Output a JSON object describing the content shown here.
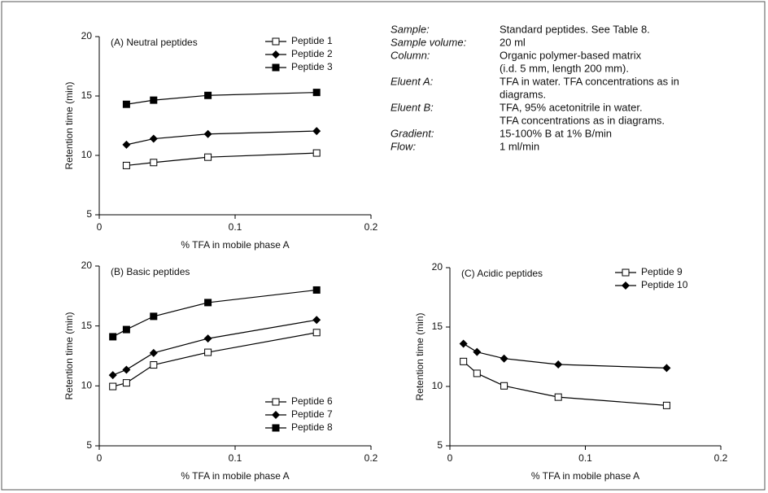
{
  "chart_data": [
    {
      "type": "line",
      "title": "(A) Neutral peptides",
      "xlabel": "% TFA in mobile phase A",
      "ylabel": "Retention time (min)",
      "x": [
        0.02,
        0.04,
        0.08,
        0.16
      ],
      "xlim": [
        0,
        0.2
      ],
      "xticks": [
        0,
        0.1,
        0.2
      ],
      "ylim": [
        5,
        20
      ],
      "yticks": [
        5,
        10,
        15,
        20
      ],
      "legend": "upper right",
      "series": [
        {
          "name": "Peptide 1",
          "color": "#000000",
          "marker": "open-square",
          "values": [
            9.15,
            9.4,
            9.85,
            10.2
          ]
        },
        {
          "name": "Peptide 2",
          "color": "#000000",
          "marker": "diamond",
          "values": [
            10.9,
            11.4,
            11.8,
            12.05
          ]
        },
        {
          "name": "Peptide 3",
          "color": "#000000",
          "marker": "square",
          "values": [
            14.3,
            14.65,
            15.05,
            15.3
          ]
        }
      ]
    },
    {
      "type": "line",
      "title": "(B) Basic peptides",
      "xlabel": "% TFA in mobile phase A",
      "ylabel": "Retention time (min)",
      "x": [
        0.01,
        0.02,
        0.04,
        0.08,
        0.16
      ],
      "xlim": [
        0,
        0.2
      ],
      "xticks": [
        0,
        0.1,
        0.2
      ],
      "ylim": [
        5,
        20
      ],
      "yticks": [
        5,
        10,
        15,
        20
      ],
      "legend": "lower right",
      "series": [
        {
          "name": "Peptide 6",
          "color": "#000000",
          "marker": "open-square",
          "values": [
            9.95,
            10.25,
            11.75,
            12.8,
            14.45
          ]
        },
        {
          "name": "Peptide 7",
          "color": "#000000",
          "marker": "diamond",
          "values": [
            10.9,
            11.35,
            12.75,
            13.95,
            15.5
          ]
        },
        {
          "name": "Peptide 8",
          "color": "#000000",
          "marker": "square",
          "values": [
            14.1,
            14.7,
            15.8,
            16.95,
            18.0
          ]
        }
      ]
    },
    {
      "type": "line",
      "title": "(C) Acidic peptides",
      "xlabel": "% TFA in mobile phase A",
      "ylabel": "Retention time (min)",
      "x": [
        0.01,
        0.02,
        0.04,
        0.08,
        0.16
      ],
      "xlim": [
        0,
        0.2
      ],
      "xticks": [
        0,
        0.1,
        0.2
      ],
      "ylim": [
        5,
        20
      ],
      "yticks": [
        5,
        10,
        15,
        20
      ],
      "legend": "upper right",
      "series": [
        {
          "name": "Peptide 9",
          "color": "#000000",
          "marker": "open-square",
          "values": [
            12.1,
            11.1,
            10.05,
            9.1,
            8.4
          ]
        },
        {
          "name": "Peptide 10",
          "color": "#000000",
          "marker": "diamond",
          "values": [
            13.6,
            12.9,
            12.35,
            11.85,
            11.55
          ]
        }
      ]
    }
  ],
  "conditions": [
    {
      "label": "Sample:",
      "lines": [
        "Standard peptides. See Table 8."
      ]
    },
    {
      "label": "Sample volume:",
      "lines": [
        "20 ml"
      ]
    },
    {
      "label": "Column:",
      "lines": [
        "Organic polymer-based matrix",
        "(i.d. 5 mm, length 200 mm)."
      ]
    },
    {
      "label": "Eluent A:",
      "lines": [
        "TFA in water. TFA concentrations as in",
        "diagrams."
      ]
    },
    {
      "label": "Eluent B:",
      "lines": [
        "TFA, 95% acetonitrile in water.",
        "TFA concentrations as in diagrams."
      ]
    },
    {
      "label": "Gradient:",
      "lines": [
        "15-100% B at 1% B/min"
      ]
    },
    {
      "label": "Flow:",
      "lines": [
        "1 ml/min"
      ]
    }
  ]
}
